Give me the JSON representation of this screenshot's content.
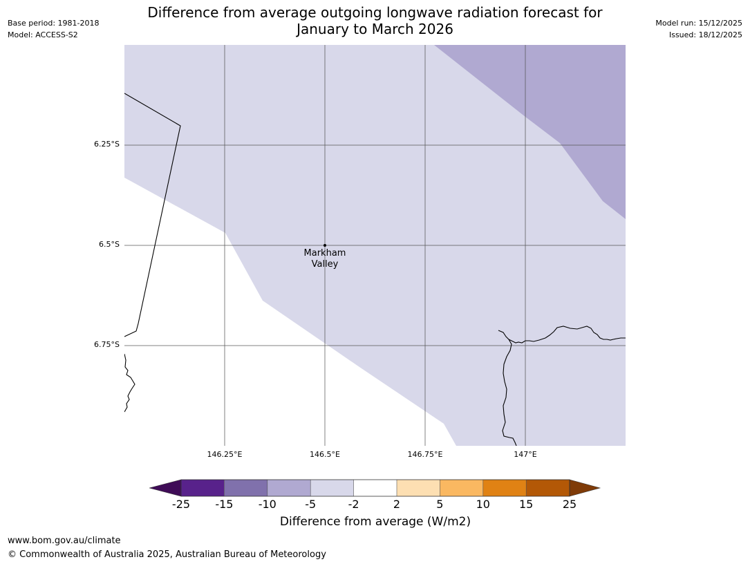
{
  "header": {
    "base_period": "Base period: 1981-2018",
    "model": "Model: ACCESS-S2",
    "title_line1": "Difference from average outgoing longwave radiation forecast for",
    "title_line2": "January to March 2026",
    "model_run": "Model run: 15/12/2025",
    "issued": "Issued: 18/12/2025"
  },
  "map": {
    "latitude_labels": [
      "6.25°S",
      "6.5°S",
      "6.75°S"
    ],
    "longitude_labels": [
      "146.25°E",
      "146.5°E",
      "146.75°E",
      "147°E"
    ],
    "place": {
      "name_line1": "Markham",
      "name_line2": "Valley",
      "lat": -6.5,
      "lon": 146.5
    },
    "categories_shown": [
      "-10 to -5",
      "-5 to -2",
      "-2 to 2"
    ]
  },
  "colorbar": {
    "ticks": [
      "-25",
      "-15",
      "-10",
      "-5",
      "-2",
      "2",
      "5",
      "10",
      "15",
      "25"
    ],
    "colors": [
      "#3f0c57",
      "#58228b",
      "#8071ac",
      "#b0a9d1",
      "#d8d8ea",
      "#ffffff",
      "#fddfb2",
      "#fab861",
      "#e08214",
      "#b35806",
      "#7f3b08"
    ],
    "label": "Difference from average (W/m2)"
  },
  "footer": {
    "url": "www.bom.gov.au/climate",
    "copyright": "© Commonwealth of Australia 2025, Australian Bureau of Meteorology"
  }
}
